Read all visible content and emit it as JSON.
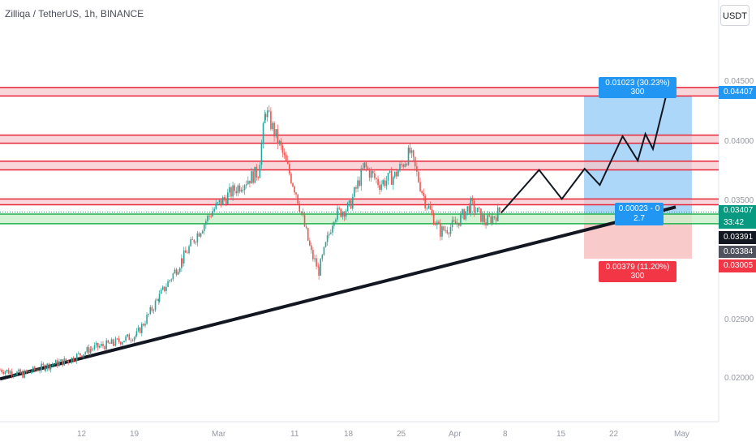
{
  "header": {
    "title": "Zilliqa / TetherUS, 1h, BINANCE",
    "currency_button": "USDT"
  },
  "colors": {
    "resistance_fill": "#f7c8cc",
    "resistance_line": "#e8263a",
    "support_fill": "#c9f0c9",
    "support_line": "#22b14c",
    "trend_line": "#131722",
    "target_box": "#9fd0f7",
    "stop_box": "#f7c1c1",
    "up": "#26a69a",
    "down": "#ef5350",
    "target_tag": "#2196f3",
    "stop_tag": "#f23645"
  },
  "chart_data": {
    "type": "candlestick",
    "title": "Zilliqa / TetherUS, 1h, BINANCE",
    "ylim": [
      0.019,
      0.046
    ],
    "y_ticks": [
      "0.04500",
      "0.04000",
      "0.03500",
      "0.02500",
      "0.02000"
    ],
    "x_ticks": [
      "12",
      "19",
      "Mar",
      "11",
      "18",
      "25",
      "Apr",
      "8",
      "15",
      "22",
      "May"
    ],
    "price_path": [
      [
        "Feb 6",
        0.0205
      ],
      [
        "Feb 9",
        0.0201
      ],
      [
        "Feb 12",
        0.0208
      ],
      [
        "Feb 15",
        0.0213
      ],
      [
        "Feb 18",
        0.0223
      ],
      [
        "Feb 21",
        0.0228
      ],
      [
        "Feb 24",
        0.0235
      ],
      [
        "Feb 27",
        0.0268
      ],
      [
        "Mar 1",
        0.03
      ],
      [
        "Mar 3",
        0.0322
      ],
      [
        "Mar 5",
        0.0342
      ],
      [
        "Mar 7",
        0.0355
      ],
      [
        "Mar 9",
        0.0366
      ],
      [
        "Mar 11",
        0.0375
      ],
      [
        "Mar 12",
        0.0428
      ],
      [
        "Mar 14",
        0.0395
      ],
      [
        "Mar 16",
        0.0358
      ],
      [
        "Mar 18",
        0.0305
      ],
      [
        "Mar 19",
        0.029
      ],
      [
        "Mar 21",
        0.0338
      ],
      [
        "Mar 23",
        0.0345
      ],
      [
        "Mar 25",
        0.038
      ],
      [
        "Mar 27",
        0.0365
      ],
      [
        "Mar 29",
        0.0372
      ],
      [
        "Mar 31",
        0.0392
      ],
      [
        "Apr 2",
        0.035
      ],
      [
        "Apr 4",
        0.0324
      ],
      [
        "Apr 6",
        0.033
      ],
      [
        "Apr 8",
        0.0347
      ],
      [
        "Apr 10",
        0.0332
      ],
      [
        "Apr 12",
        0.0342
      ]
    ],
    "projection_path": [
      [
        "Apr 12",
        0.034
      ],
      [
        "Apr 17",
        0.0377
      ],
      [
        "Apr 20",
        0.0352
      ],
      [
        "Apr 23",
        0.0378
      ],
      [
        "Apr 25",
        0.0364
      ],
      [
        "Apr 28",
        0.0406
      ],
      [
        "Apr 30",
        0.0385
      ],
      [
        "May 1",
        0.0408
      ],
      [
        "May 2",
        0.0395
      ],
      [
        "May 4",
        0.0448
      ]
    ],
    "resistance_zones": [
      [
        0.04407,
        0.0448
      ],
      [
        0.04,
        0.0407
      ],
      [
        0.0377,
        0.03845
      ],
      [
        0.0347,
        0.0352
      ]
    ],
    "support_zone": [
      0.03307,
      0.0339
    ],
    "trend_line": [
      [
        "Feb 6",
        0.0197
      ],
      [
        "May 5",
        0.0345
      ]
    ],
    "position": {
      "entry": 0.03384,
      "target": 0.04407,
      "stop": 0.03005,
      "target_label": "0.01023 (30.23%) 300",
      "stop_label": "0.00379 (11.20%) 300",
      "ratio_line1": "0.00023 - 0",
      "ratio_line2": "2.7"
    },
    "price_tags": [
      {
        "value": "0.04407",
        "kind": "target"
      },
      {
        "value": "0.03407",
        "kind": "last"
      },
      {
        "value": "33:42",
        "kind": "countdown"
      },
      {
        "value": "0.03391",
        "kind": "current"
      },
      {
        "value": "0.03384",
        "kind": "entry"
      },
      {
        "value": "0.03005",
        "kind": "stop"
      }
    ]
  }
}
